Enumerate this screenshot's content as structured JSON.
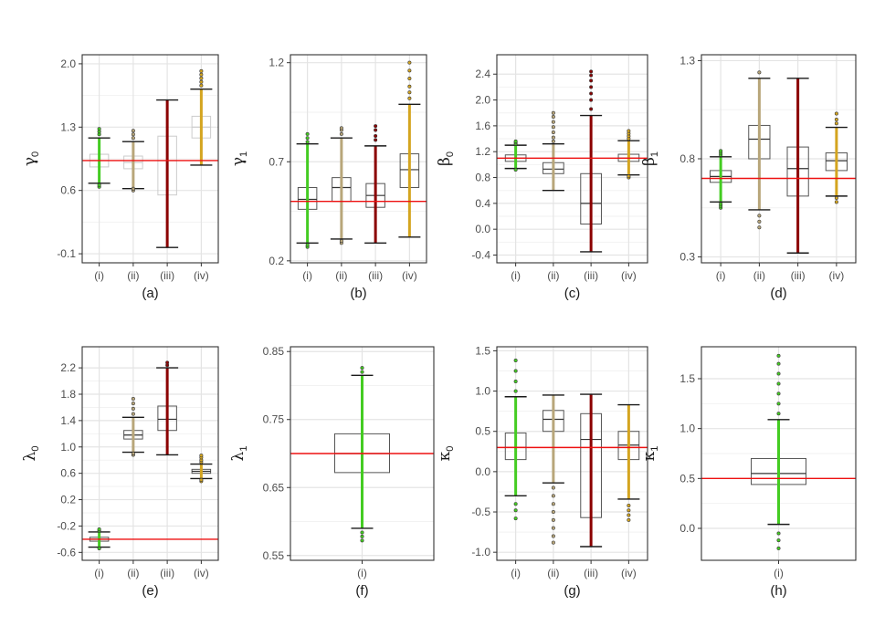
{
  "colors": {
    "panel_border": "#333333",
    "grid_major": "#e4e4e4",
    "grid_minor": "#f2f2f2",
    "reference_line": "#ee1111",
    "box_outline": "#555555"
  },
  "chart_data": [
    {
      "type": "box",
      "caption": "(a)",
      "ylabel": "γ",
      "ylabel_sub": "0",
      "categories": [
        "(i)",
        "(ii)",
        "(iii)",
        "(iv)"
      ],
      "yticks": [
        -0.1,
        0.6,
        1.3,
        2.0
      ],
      "ytick_labels": [
        "-0.1",
        "0.6",
        "1.3",
        "2.0"
      ],
      "ylim": [
        -0.2,
        2.1
      ],
      "reference": 0.93,
      "boxes": [
        {
          "q1": 0.86,
          "median": 0.93,
          "q3": 1.0,
          "wlo": 0.68,
          "whi": 1.18,
          "outlo": [
            0.64,
            0.66
          ],
          "outhi": [
            1.22,
            1.25,
            1.28
          ],
          "color": "#44cc22",
          "box_color": "#c8c8c8"
        },
        {
          "q1": 0.84,
          "median": 0.91,
          "q3": 0.98,
          "wlo": 0.62,
          "whi": 1.14,
          "outlo": [
            0.6,
            0.62
          ],
          "outhi": [
            1.18,
            1.22,
            1.26
          ],
          "color": "#b8a67a",
          "box_color": "#cccccc"
        },
        {
          "q1": 0.55,
          "median": 0.93,
          "q3": 1.2,
          "wlo": -0.03,
          "whi": 1.6,
          "outlo": [],
          "outhi": [],
          "color": "#8b0000",
          "box_color": "#cccccc"
        },
        {
          "q1": 1.18,
          "median": 1.3,
          "q3": 1.42,
          "wlo": 0.88,
          "whi": 1.72,
          "outlo": [],
          "outhi": [
            1.76,
            1.8,
            1.84,
            1.88,
            1.92
          ],
          "color": "#d4a520",
          "box_color": "#cccccc"
        }
      ]
    },
    {
      "type": "box",
      "caption": "(b)",
      "ylabel": "γ",
      "ylabel_sub": "1",
      "categories": [
        "(i)",
        "(ii)",
        "(iii)",
        "(iv)"
      ],
      "yticks": [
        0.2,
        0.7,
        1.2
      ],
      "ytick_labels": [
        "0.2",
        "0.7",
        "1.2"
      ],
      "ylim": [
        0.19,
        1.24
      ],
      "reference": 0.5,
      "boxes": [
        {
          "q1": 0.46,
          "median": 0.51,
          "q3": 0.57,
          "wlo": 0.29,
          "whi": 0.79,
          "outlo": [
            0.27,
            0.28
          ],
          "outhi": [
            0.8,
            0.82,
            0.84
          ],
          "color": "#44cc22",
          "box_color": "#555555"
        },
        {
          "q1": 0.5,
          "median": 0.57,
          "q3": 0.62,
          "wlo": 0.31,
          "whi": 0.82,
          "outlo": [
            0.29,
            0.3
          ],
          "outhi": [
            0.84,
            0.86,
            0.87
          ],
          "color": "#b8a67a",
          "box_color": "#555555"
        },
        {
          "q1": 0.47,
          "median": 0.53,
          "q3": 0.59,
          "wlo": 0.29,
          "whi": 0.78,
          "outlo": [],
          "outhi": [
            0.81,
            0.83,
            0.86,
            0.88
          ],
          "color": "#8b0000",
          "box_color": "#555555"
        },
        {
          "q1": 0.57,
          "median": 0.66,
          "q3": 0.74,
          "wlo": 0.32,
          "whi": 0.99,
          "outlo": [],
          "outhi": [
            1.02,
            1.05,
            1.08,
            1.12,
            1.16,
            1.2
          ],
          "color": "#d4a520",
          "box_color": "#555555"
        }
      ]
    },
    {
      "type": "box",
      "caption": "(c)",
      "ylabel": "β",
      "ylabel_sub": "0",
      "categories": [
        "(i)",
        "(ii)",
        "(iii)",
        "(iv)"
      ],
      "yticks": [
        -0.4,
        0.0,
        0.4,
        0.8,
        1.2,
        1.6,
        2.0,
        2.4
      ],
      "ytick_labels": [
        "-0.4",
        "0.0",
        "0.4",
        "0.8",
        "1.2",
        "1.6",
        "2.0",
        "2.4"
      ],
      "ylim": [
        -0.52,
        2.7
      ],
      "reference": 1.1,
      "boxes": [
        {
          "q1": 1.05,
          "median": 1.1,
          "q3": 1.15,
          "wlo": 0.94,
          "whi": 1.3,
          "outlo": [
            0.92
          ],
          "outhi": [
            1.32,
            1.34,
            1.36
          ],
          "color": "#44cc22",
          "box_color": "#555555"
        },
        {
          "q1": 0.86,
          "median": 0.93,
          "q3": 1.03,
          "wlo": 0.6,
          "whi": 1.32,
          "outlo": [],
          "outhi": [
            1.36,
            1.42,
            1.5,
            1.58,
            1.66,
            1.74,
            1.8
          ],
          "color": "#b8a67a",
          "box_color": "#555555"
        },
        {
          "q1": 0.08,
          "median": 0.4,
          "q3": 0.86,
          "wlo": -0.35,
          "whi": 1.76,
          "outlo": [],
          "outhi": [
            1.86,
            2.0,
            2.1,
            2.2,
            2.3,
            2.38,
            2.44
          ],
          "color": "#8b0000",
          "box_color": "#555555"
        },
        {
          "q1": 1.05,
          "median": 1.1,
          "q3": 1.16,
          "wlo": 0.84,
          "whi": 1.37,
          "outlo": [
            0.8,
            0.82
          ],
          "outhi": [
            1.4,
            1.44,
            1.48,
            1.52
          ],
          "color": "#d4a520",
          "box_color": "#555555"
        }
      ]
    },
    {
      "type": "box",
      "caption": "(d)",
      "ylabel": "β",
      "ylabel_sub": "1",
      "categories": [
        "(i)",
        "(ii)",
        "(iii)",
        "(iv)"
      ],
      "yticks": [
        0.3,
        0.8,
        1.3
      ],
      "ytick_labels": [
        "0.3",
        "0.8",
        "1.3"
      ],
      "ylim": [
        0.27,
        1.33
      ],
      "reference": 0.7,
      "boxes": [
        {
          "q1": 0.68,
          "median": 0.71,
          "q3": 0.74,
          "wlo": 0.58,
          "whi": 0.81,
          "outlo": [
            0.55,
            0.56,
            0.57
          ],
          "outhi": [
            0.82,
            0.83,
            0.84
          ],
          "color": "#44cc22",
          "box_color": "#555555"
        },
        {
          "q1": 0.8,
          "median": 0.9,
          "q3": 0.97,
          "wlo": 0.54,
          "whi": 1.21,
          "outlo": [
            0.45,
            0.48,
            0.51
          ],
          "outhi": [
            1.24
          ],
          "color": "#b8a67a",
          "box_color": "#555555"
        },
        {
          "q1": 0.61,
          "median": 0.75,
          "q3": 0.86,
          "wlo": 0.32,
          "whi": 1.21,
          "outlo": [],
          "outhi": [],
          "color": "#8b0000",
          "box_color": "#555555"
        },
        {
          "q1": 0.74,
          "median": 0.79,
          "q3": 0.83,
          "wlo": 0.61,
          "whi": 0.96,
          "outlo": [
            0.58,
            0.6
          ],
          "outhi": [
            0.98,
            1.0,
            1.03
          ],
          "color": "#d4a520",
          "box_color": "#555555"
        }
      ]
    },
    {
      "type": "box",
      "caption": "(e)",
      "ylabel": "λ",
      "ylabel_sub": "0",
      "categories": [
        "(i)",
        "(ii)",
        "(iii)",
        "(iv)"
      ],
      "yticks": [
        -0.6,
        -0.2,
        0.2,
        0.6,
        1.0,
        1.4,
        1.8,
        2.2
      ],
      "ytick_labels": [
        "-0.6",
        "-0.2",
        "0.2",
        "0.6",
        "1.0",
        "1.4",
        "1.8",
        "2.2"
      ],
      "ylim": [
        -0.72,
        2.52
      ],
      "reference": -0.4,
      "boxes": [
        {
          "q1": -0.43,
          "median": -0.4,
          "q3": -0.37,
          "wlo": -0.52,
          "whi": -0.29,
          "outlo": [
            -0.54
          ],
          "outhi": [
            -0.27,
            -0.25
          ],
          "color": "#44cc22",
          "box_color": "#555555"
        },
        {
          "q1": 1.12,
          "median": 1.18,
          "q3": 1.25,
          "wlo": 0.92,
          "whi": 1.45,
          "outlo": [
            0.88,
            0.9
          ],
          "outhi": [
            1.5,
            1.58,
            1.66,
            1.73
          ],
          "color": "#b8a67a",
          "box_color": "#555555"
        },
        {
          "q1": 1.25,
          "median": 1.42,
          "q3": 1.62,
          "wlo": 0.88,
          "whi": 2.2,
          "outlo": [],
          "outhi": [
            2.24,
            2.28
          ],
          "color": "#8b0000",
          "box_color": "#555555"
        },
        {
          "q1": 0.6,
          "median": 0.63,
          "q3": 0.66,
          "wlo": 0.52,
          "whi": 0.74,
          "outlo": [
            0.48,
            0.5
          ],
          "outhi": [
            0.77,
            0.8,
            0.84,
            0.87
          ],
          "color": "#d4a520",
          "box_color": "#555555"
        }
      ]
    },
    {
      "type": "box",
      "caption": "(f)",
      "ylabel": "λ",
      "ylabel_sub": "1",
      "categories": [
        "(i)"
      ],
      "yticks": [
        0.55,
        0.65,
        0.75,
        0.85
      ],
      "ytick_labels": [
        "0.55",
        "0.65",
        "0.75",
        "0.85"
      ],
      "ylim": [
        0.543,
        0.857
      ],
      "reference": 0.7,
      "boxes": [
        {
          "q1": 0.672,
          "median": 0.7,
          "q3": 0.729,
          "wlo": 0.59,
          "whi": 0.815,
          "outlo": [
            0.572,
            0.578,
            0.584
          ],
          "outhi": [
            0.82,
            0.826
          ],
          "color": "#44cc22",
          "box_color": "#555555"
        }
      ]
    },
    {
      "type": "box",
      "caption": "(g)",
      "ylabel": "κ",
      "ylabel_sub": "0",
      "categories": [
        "(i)",
        "(ii)",
        "(iii)",
        "(iv)"
      ],
      "yticks": [
        -1.0,
        -0.5,
        0.0,
        0.5,
        1.0,
        1.5
      ],
      "ytick_labels": [
        "-1.0",
        "-0.5",
        "0.0",
        "0.5",
        "1.0",
        "1.5"
      ],
      "ylim": [
        -1.1,
        1.55
      ],
      "reference": 0.3,
      "boxes": [
        {
          "q1": 0.15,
          "median": 0.3,
          "q3": 0.48,
          "wlo": -0.3,
          "whi": 0.93,
          "outlo": [
            -0.4,
            -0.48,
            -0.58
          ],
          "outhi": [
            1.0,
            1.12,
            1.25,
            1.38
          ],
          "color": "#44cc22",
          "box_color": "#555555"
        },
        {
          "q1": 0.5,
          "median": 0.65,
          "q3": 0.76,
          "wlo": -0.14,
          "whi": 0.95,
          "outlo": [
            -0.2,
            -0.3,
            -0.4,
            -0.5,
            -0.6,
            -0.7,
            -0.8,
            -0.88
          ],
          "outhi": [],
          "color": "#b8a67a",
          "box_color": "#555555"
        },
        {
          "q1": -0.57,
          "median": 0.4,
          "q3": 0.72,
          "wlo": -0.93,
          "whi": 0.96,
          "outlo": [],
          "outhi": [],
          "color": "#8b0000",
          "box_color": "#555555"
        },
        {
          "q1": 0.15,
          "median": 0.33,
          "q3": 0.5,
          "wlo": -0.34,
          "whi": 0.83,
          "outlo": [
            -0.42,
            -0.48,
            -0.54,
            -0.6
          ],
          "outhi": [],
          "color": "#d4a520",
          "box_color": "#555555"
        }
      ]
    },
    {
      "type": "box",
      "caption": "(h)",
      "ylabel": "κ",
      "ylabel_sub": "1",
      "categories": [
        "(i)"
      ],
      "yticks": [
        0.0,
        0.5,
        1.0,
        1.5
      ],
      "ytick_labels": [
        "0.0",
        "0.5",
        "1.0",
        "1.5"
      ],
      "ylim": [
        -0.32,
        1.82
      ],
      "reference": 0.5,
      "boxes": [
        {
          "q1": 0.44,
          "median": 0.55,
          "q3": 0.7,
          "wlo": 0.04,
          "whi": 1.09,
          "outlo": [
            -0.05,
            -0.12,
            -0.2
          ],
          "outhi": [
            1.15,
            1.25,
            1.35,
            1.45,
            1.55,
            1.65,
            1.73
          ],
          "color": "#44cc22",
          "box_color": "#555555"
        }
      ]
    }
  ]
}
